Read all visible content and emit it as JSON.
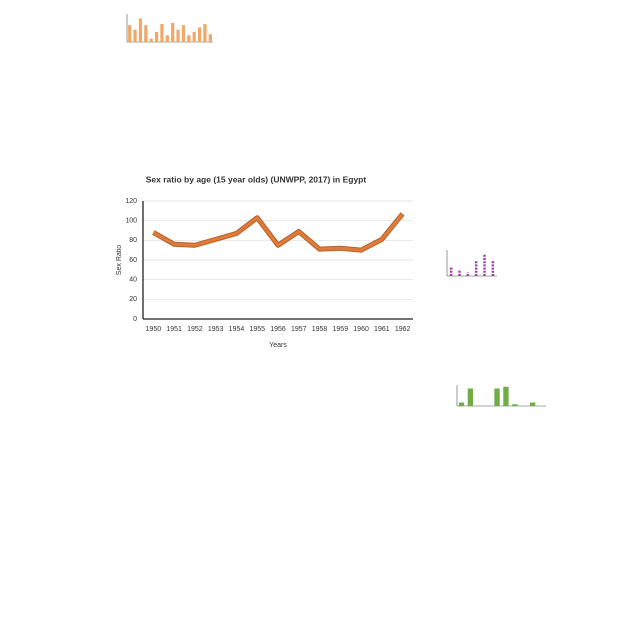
{
  "chart_data": [
    {
      "type": "line",
      "title": "Sex ratio by age (15 year olds) (UNWPP, 2017) in Egypt",
      "x_label": "Years",
      "y_label": "Sex Ratio",
      "categories": [
        "1950",
        "1951",
        "1952",
        "1953",
        "1954",
        "1955",
        "1956",
        "1957",
        "1958",
        "1959",
        "1960",
        "1961",
        "1962"
      ],
      "values": [
        88,
        76,
        75,
        81,
        87,
        103,
        75,
        89,
        71,
        72,
        70,
        81,
        107
      ],
      "color": "#e07b39",
      "ylim": [
        0,
        120
      ],
      "yticks": [
        0,
        20,
        40,
        60,
        80,
        100,
        120
      ],
      "grid": true
    },
    {
      "type": "bar",
      "values": [
        15,
        11,
        21,
        15,
        3,
        9,
        16,
        6,
        17,
        11,
        15,
        6,
        9,
        13,
        16,
        7
      ],
      "color": "#f0a868",
      "ylim": [
        0,
        25
      ]
    },
    {
      "type": "dot",
      "values": [
        5,
        3,
        2,
        8,
        12,
        8
      ],
      "color": "#9b3fa3",
      "ylim": [
        0,
        14
      ]
    },
    {
      "type": "bar",
      "values": [
        2,
        10,
        0,
        0,
        10,
        11,
        1,
        0,
        2,
        0
      ],
      "color": "#70ad47",
      "ylim": [
        0,
        12
      ]
    }
  ]
}
